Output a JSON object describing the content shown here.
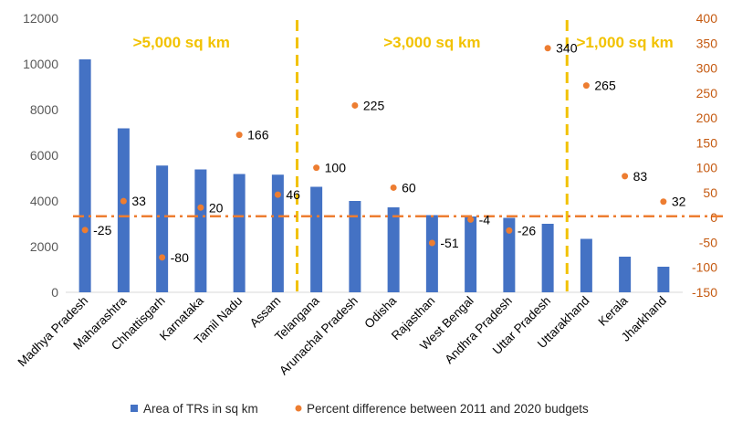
{
  "chart_data": {
    "type": "bar",
    "categories": [
      "Madhya Pradesh",
      "Maharashtra",
      "Chhattisgarh",
      "Karnataka",
      "Tamil Nadu",
      "Assam",
      "Telangana",
      "Arunachal Pradesh",
      "Odisha",
      "Rajasthan",
      "West Bengal",
      "Andhra Pradesh",
      "Uttar Pradesh",
      "Uttarakhand",
      "Kerala",
      "Jharkhand"
    ],
    "series": [
      {
        "name": "Area of TRs in sq km",
        "type": "bar",
        "axis": "left",
        "color": "#4472C4",
        "values": [
          10200,
          7180,
          5550,
          5380,
          5180,
          5150,
          4620,
          4000,
          3720,
          3380,
          3320,
          3260,
          3000,
          2340,
          1560,
          1120
        ]
      },
      {
        "name": "Percent difference between 2011 and 2020 budgets",
        "type": "scatter",
        "axis": "right",
        "color": "#ED7D31",
        "values": [
          -25,
          33,
          -80,
          20,
          166,
          46,
          100,
          225,
          60,
          -51,
          -4,
          -26,
          340,
          265,
          83,
          32
        ],
        "labels": [
          "-25",
          "33",
          "-80",
          "20",
          "166",
          "46",
          "100",
          "225",
          "60",
          "-51",
          "-4",
          "-26",
          "340",
          "265",
          "83",
          "32"
        ]
      }
    ],
    "ylim": [
      0,
      12000
    ],
    "y_ticks": [
      "0",
      "2000",
      "4000",
      "6000",
      "8000",
      "10000",
      "12000"
    ],
    "y2lim": [
      -150,
      400
    ],
    "y2_ticks": [
      "-150",
      "-100",
      "-50",
      "0",
      "50",
      "100",
      "150",
      "200",
      "250",
      "300",
      "350",
      "400"
    ],
    "reference_line": {
      "axis": "left",
      "value": 3330,
      "color": "#ED7D31",
      "style": "dash-dot"
    },
    "groups": [
      {
        "label": ">5,000 sq km",
        "categories": [
          "Madhya Pradesh",
          "Maharashtra",
          "Chhattisgarh",
          "Karnataka",
          "Tamil Nadu",
          "Assam"
        ]
      },
      {
        "label": ">3,000 sq km",
        "categories": [
          "Telangana",
          "Arunachal Pradesh",
          "Odisha",
          "Rajasthan",
          "West Bengal",
          "Andhra Pradesh",
          "Uttar Pradesh"
        ]
      },
      {
        "label": ">1,000 sq km",
        "categories": [
          "Uttarakhand",
          "Kerala",
          "Jharkhand"
        ]
      }
    ],
    "divider_color": "#F2C200",
    "legend_position": "bottom",
    "grid": false
  }
}
